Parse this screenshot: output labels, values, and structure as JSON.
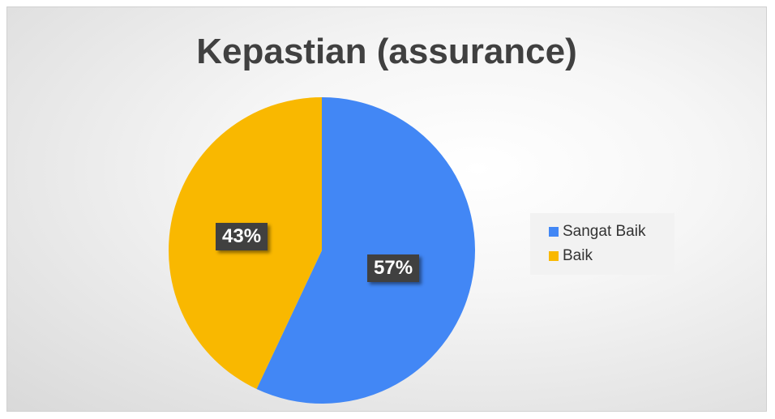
{
  "chart_data": {
    "type": "pie",
    "title": "Kepastian (assurance)",
    "categories": [
      "Sangat Baik",
      "Baik"
    ],
    "values": [
      57,
      43
    ],
    "value_labels": [
      "57%",
      "43%"
    ],
    "colors": [
      "#4287F5",
      "#F9B800"
    ],
    "start_angle_deg": 0,
    "direction": "clockwise",
    "legend_position": "right"
  }
}
